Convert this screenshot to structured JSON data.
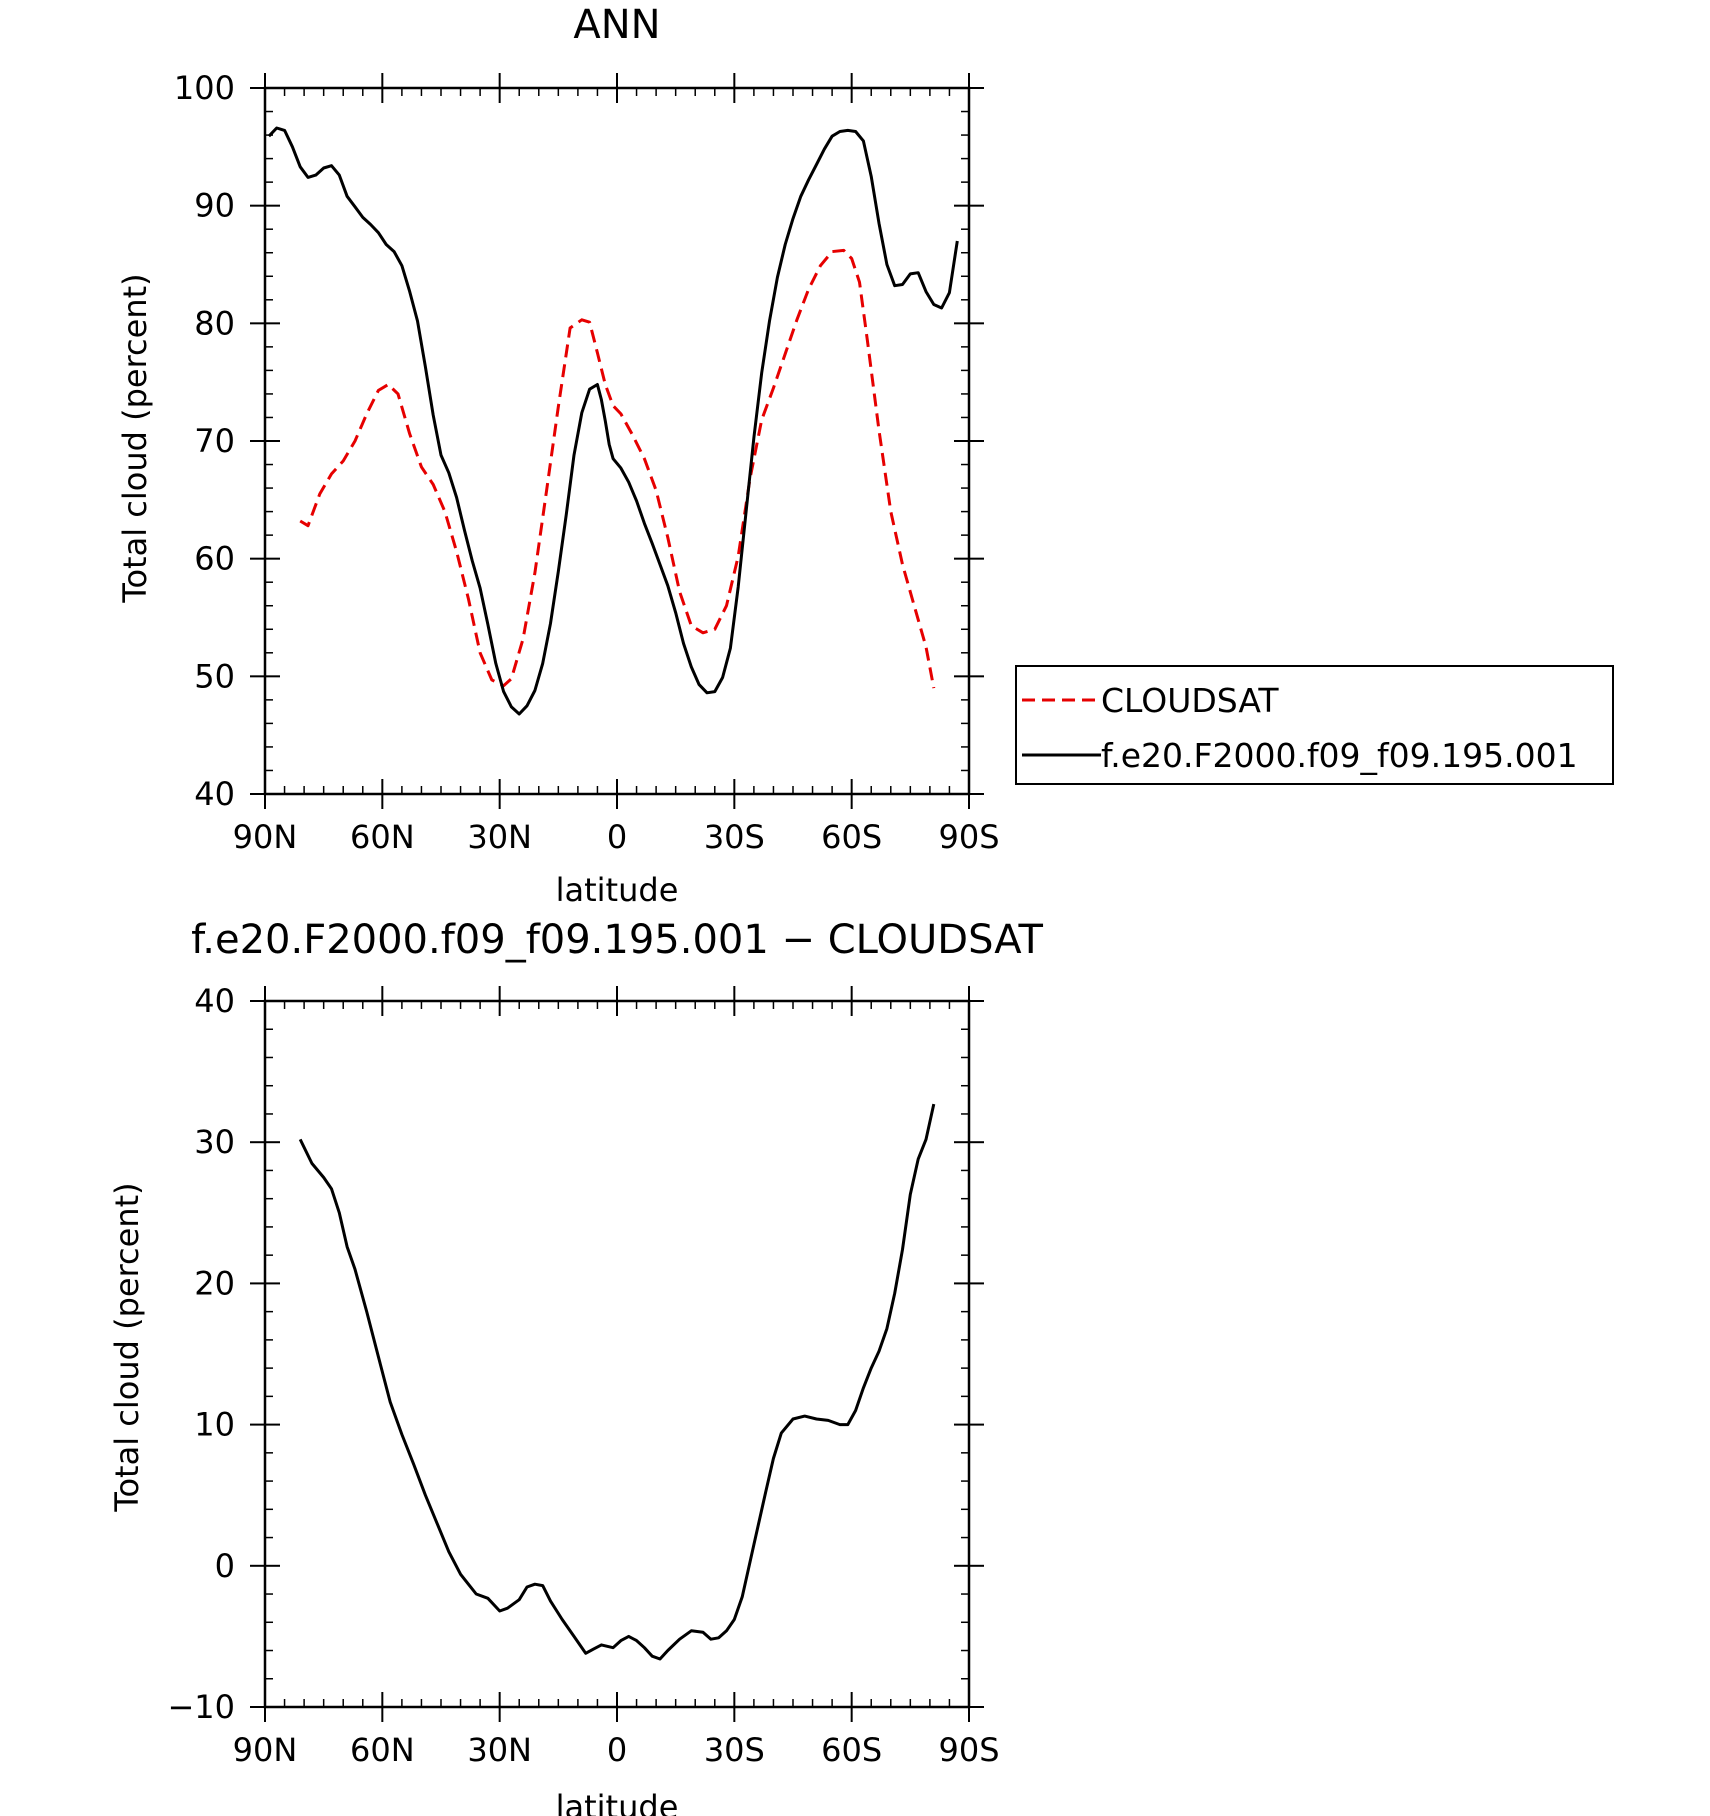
{
  "chart_data": [
    {
      "type": "line",
      "title": "ANN",
      "xlabel": "latitude",
      "ylabel": "Total cloud (percent)",
      "xlim": [
        90,
        -90
      ],
      "ylim": [
        40,
        100
      ],
      "x_tick_values": [
        90,
        60,
        30,
        0,
        -30,
        -60,
        -90
      ],
      "x_tick_labels": [
        "90N",
        "60N",
        "30N",
        "0",
        "30S",
        "60S",
        "90S"
      ],
      "y_ticks": [
        40,
        50,
        60,
        70,
        80,
        90,
        100
      ],
      "grid": false,
      "legend_position": "right",
      "series": [
        {
          "name": "CLOUDSAT",
          "color": "#e60000",
          "dash": "dashed",
          "x": [
            81,
            79,
            76,
            73,
            70,
            67,
            64,
            61,
            58.5,
            56,
            53,
            50,
            47,
            44,
            41,
            38,
            35,
            32,
            29,
            27,
            24,
            21,
            18,
            15,
            12,
            9,
            7,
            5,
            3,
            1,
            -1,
            -4,
            -7,
            -10,
            -13,
            -16,
            -19,
            -22,
            -25,
            -28,
            -31,
            -34,
            -37,
            -40,
            -43,
            -46,
            -49,
            -52,
            -55,
            -58,
            -60,
            -62,
            -64,
            -67,
            -70,
            -73,
            -76,
            -79,
            -81
          ],
          "values": [
            63.2,
            62.8,
            65.5,
            67.2,
            68.3,
            70.0,
            72.3,
            74.3,
            74.8,
            74.0,
            70.6,
            67.8,
            66.3,
            64.0,
            60.6,
            56.6,
            52.0,
            49.7,
            49.2,
            49.8,
            53.2,
            58.8,
            65.8,
            72.9,
            79.6,
            80.3,
            80.1,
            77.5,
            74.8,
            73.0,
            72.3,
            70.5,
            68.5,
            65.8,
            61.8,
            57.2,
            54.3,
            53.7,
            54.0,
            56.0,
            60.2,
            66.8,
            71.8,
            74.5,
            77.4,
            80.3,
            82.9,
            84.9,
            86.1,
            86.2,
            85.5,
            83.5,
            78.6,
            70.9,
            64.0,
            59.5,
            56.0,
            52.5,
            49.0
          ]
        },
        {
          "name": "f.e20.F2000.f09_f09.195.001",
          "color": "#000000",
          "dash": "solid",
          "x": [
            89,
            87,
            85,
            83,
            81,
            79,
            77,
            75,
            73,
            71,
            69,
            67,
            65,
            63,
            61,
            59,
            57,
            55,
            53,
            51,
            49,
            47,
            45,
            43,
            41,
            39,
            37,
            35,
            33,
            31,
            29,
            27,
            25,
            23,
            21,
            19,
            17,
            15,
            13,
            11,
            9,
            7,
            5,
            4,
            3,
            2,
            1,
            -1,
            -3,
            -5,
            -7,
            -9,
            -11,
            -13,
            -15,
            -17,
            -19,
            -21,
            -23,
            -25,
            -27,
            -29,
            -31,
            -33,
            -35,
            -37,
            -39,
            -41,
            -43,
            -45,
            -47,
            -49,
            -51,
            -53,
            -55,
            -57,
            -59,
            -61,
            -63,
            -65,
            -67,
            -69,
            -71,
            -73,
            -75,
            -77,
            -79,
            -81,
            -83,
            -85,
            -87
          ],
          "values": [
            95.9,
            96.6,
            96.4,
            95.0,
            93.3,
            92.4,
            92.6,
            93.2,
            93.4,
            92.6,
            90.8,
            89.9,
            89.0,
            88.4,
            87.7,
            86.7,
            86.1,
            84.9,
            82.7,
            80.2,
            76.3,
            72.2,
            68.8,
            67.3,
            65.2,
            62.4,
            59.8,
            57.5,
            54.4,
            51.1,
            48.7,
            47.4,
            46.8,
            47.5,
            48.8,
            51.1,
            54.5,
            58.9,
            63.7,
            68.8,
            72.4,
            74.4,
            74.8,
            73.5,
            71.7,
            69.7,
            68.5,
            67.7,
            66.5,
            64.9,
            63.0,
            61.3,
            59.5,
            57.7,
            55.4,
            52.8,
            50.8,
            49.3,
            48.6,
            48.7,
            49.9,
            52.4,
            57.6,
            64.0,
            70.3,
            75.8,
            80.2,
            83.9,
            86.7,
            88.9,
            90.8,
            92.2,
            93.5,
            94.8,
            95.9,
            96.3,
            96.4,
            96.3,
            95.5,
            92.5,
            88.5,
            85.0,
            83.2,
            83.3,
            84.2,
            84.3,
            82.7,
            81.6,
            81.3,
            82.6,
            87.0
          ]
        }
      ]
    },
    {
      "type": "line",
      "title": "f.e20.F2000.f09_f09.195.001 − CLOUDSAT",
      "xlabel": "latitude",
      "ylabel": "Total cloud (percent)",
      "xlim": [
        90,
        -90
      ],
      "ylim": [
        -10,
        40
      ],
      "x_tick_values": [
        90,
        60,
        30,
        0,
        -30,
        -60,
        -90
      ],
      "x_tick_labels": [
        "90N",
        "60N",
        "30N",
        "0",
        "30S",
        "60S",
        "90S"
      ],
      "y_ticks": [
        -10,
        0,
        10,
        20,
        30,
        40
      ],
      "y_tick_labels": [
        "−10",
        "0",
        "10",
        "20",
        "30",
        "40"
      ],
      "grid": false,
      "series": [
        {
          "color": "#000000",
          "dash": "solid",
          "x": [
            81,
            78,
            75,
            73,
            71,
            69,
            67,
            64,
            61,
            58,
            55,
            52,
            49,
            46,
            43,
            40,
            38,
            36,
            33,
            30,
            28,
            25,
            23,
            21,
            19,
            17,
            14,
            11,
            8,
            6,
            4,
            1,
            -1,
            -3,
            -5,
            -7,
            -9,
            -11,
            -13,
            -16,
            -19,
            -22,
            -24,
            -26,
            -28,
            -30,
            -32,
            -35,
            -38,
            -40,
            -42,
            -45,
            -48,
            -51,
            -54,
            -57,
            -59,
            -61,
            -63,
            -65,
            -67,
            -69,
            -71,
            -73,
            -75,
            -77,
            -79,
            -81
          ],
          "values": [
            30.2,
            28.5,
            27.5,
            26.7,
            25.0,
            22.6,
            21.0,
            18.0,
            14.8,
            11.6,
            9.3,
            7.2,
            5.0,
            3.0,
            1.0,
            -0.6,
            -1.3,
            -2.0,
            -2.3,
            -3.2,
            -3.0,
            -2.4,
            -1.5,
            -1.3,
            -1.4,
            -2.5,
            -3.8,
            -5.0,
            -6.2,
            -5.9,
            -5.6,
            -5.8,
            -5.3,
            -5.0,
            -5.3,
            -5.8,
            -6.4,
            -6.6,
            -6.0,
            -5.2,
            -4.6,
            -4.7,
            -5.2,
            -5.1,
            -4.6,
            -3.8,
            -2.2,
            1.5,
            5.2,
            7.6,
            9.4,
            10.4,
            10.6,
            10.4,
            10.3,
            10.0,
            10.0,
            11.0,
            12.6,
            14.0,
            15.2,
            16.8,
            19.3,
            22.4,
            26.3,
            28.8,
            30.2,
            32.7
          ]
        }
      ]
    }
  ]
}
